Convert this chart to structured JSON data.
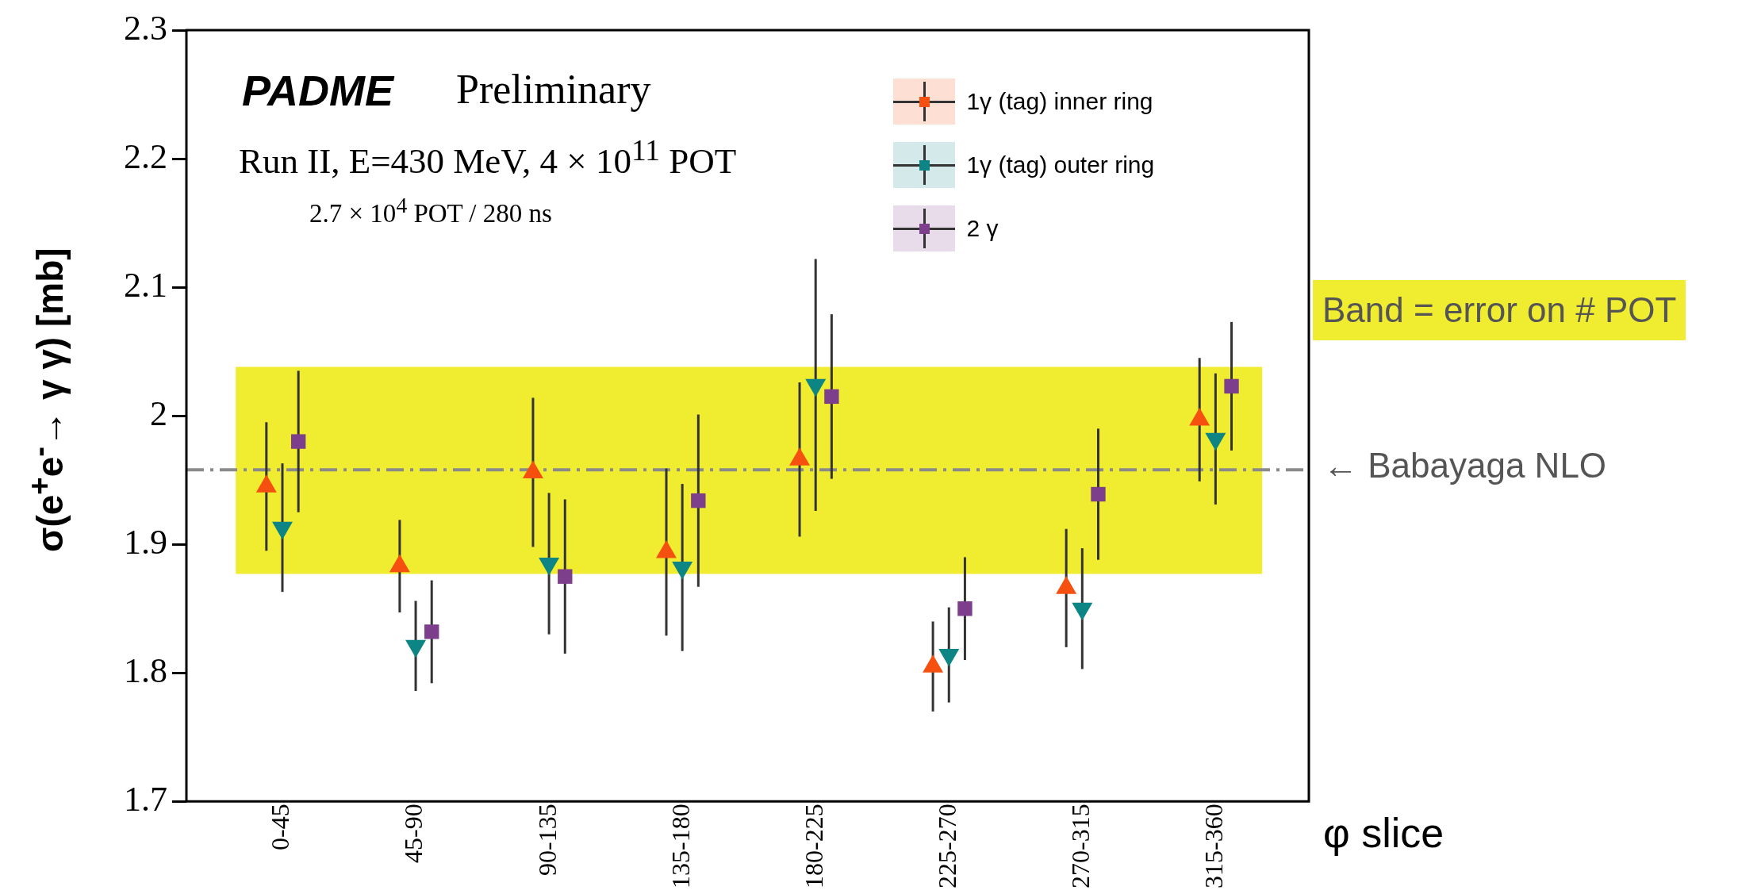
{
  "chart_data": {
    "type": "scatter",
    "title": "PADME",
    "subtitle": "Preliminary",
    "ylabel": "σ(e$^{+}$e$^{-}$→ γ γ) [mb]",
    "xlabel": "φ slice",
    "annotations": [
      "Run II, E=430 MeV, 4 × 10$^{11}$ POT",
      "2.7 × 10$^{4}$ POT / 280 ns"
    ],
    "categories": [
      "0-45",
      "45-90",
      "90-135",
      "135-180",
      "180-225",
      "225-270",
      "270-315",
      "315-360"
    ],
    "series": [
      {
        "name": "1γ (tag) inner ring",
        "color": "#f5500f",
        "marker": "triangle",
        "values": [
          1.945,
          1.883,
          1.956,
          1.894,
          1.966,
          1.805,
          1.866,
          1.997
        ],
        "errors": [
          0.05,
          0.036,
          0.058,
          0.065,
          0.06,
          0.035,
          0.046,
          0.048
        ]
      },
      {
        "name": "1γ (tag) outer ring",
        "color": "#0e8585",
        "marker": "triangle-down",
        "values": [
          1.913,
          1.821,
          1.885,
          1.882,
          2.024,
          1.814,
          1.85,
          1.982
        ],
        "errors": [
          0.05,
          0.035,
          0.055,
          0.065,
          0.098,
          0.037,
          0.047,
          0.051
        ]
      },
      {
        "name": "2 γ",
        "color": "#7d3f8c",
        "marker": "square",
        "values": [
          1.98,
          1.832,
          1.875,
          1.934,
          2.015,
          1.85,
          1.939,
          2.023
        ],
        "errors": [
          0.055,
          0.04,
          0.06,
          0.067,
          0.064,
          0.04,
          0.051,
          0.05
        ]
      }
    ],
    "ylim": [
      1.7,
      2.3
    ],
    "yticks": [
      1.7,
      1.8,
      1.9,
      2,
      2.1,
      2.2,
      2.3
    ],
    "ref_lines": [
      {
        "axis": "y",
        "value": 1.958,
        "label": "← Babayaga NLO",
        "color": "#8a8a8a",
        "line_style": "dashed"
      }
    ],
    "bands": [
      {
        "axis": "y",
        "from": 1.877,
        "to": 2.038,
        "label": "Band = error on # POT",
        "color": "#f0ec30"
      }
    ],
    "grid": false,
    "legend": "top right"
  }
}
